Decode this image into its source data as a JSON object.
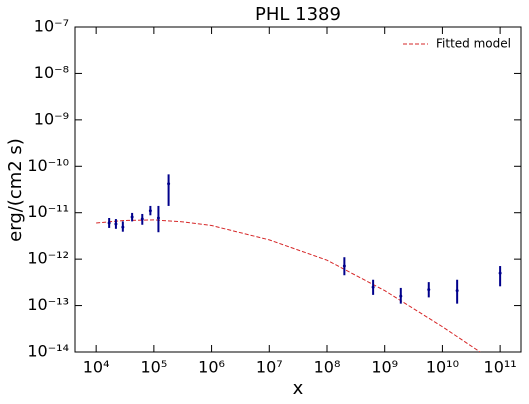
{
  "chart_data": {
    "type": "scatter",
    "title": "PHL 1389",
    "xlabel": "x",
    "ylabel": "erg/(cm2 s)",
    "xlog": true,
    "ylog": true,
    "color": "#00008b",
    "x": [
      16800,
      22000,
      29000,
      42000,
      63000,
      87000,
      120000,
      180000,
      200000000,
      630000000,
      1900000000,
      5800000000,
      18000000000,
      100000000000
    ],
    "values": [
      6e-12,
      5.7e-12,
      4.9e-12,
      8.1e-12,
      7.3e-12,
      1.1e-11,
      7.7e-12,
      4.2e-11,
      7.1e-13,
      2.5e-13,
      1.6e-13,
      2.2e-13,
      2.1e-13,
      5e-13
    ],
    "y_low": [
      4.7e-12,
      4.5e-12,
      3.9e-12,
      6.5e-12,
      5.5e-12,
      8.8e-12,
      3.8e-12,
      1.4e-11,
      4.5e-13,
      1.7e-13,
      1.1e-13,
      1.5e-13,
      1.1e-13,
      2.6e-13
    ],
    "y_high": [
      7.7e-12,
      7.3e-12,
      6.5e-12,
      9.9e-12,
      9.4e-12,
      1.4e-11,
      1.4e-11,
      6.7e-11,
      1.1e-12,
      3.6e-13,
      2.4e-13,
      3.2e-13,
      3.6e-13,
      7.1e-13
    ],
    "model": {
      "name": "Fitted model",
      "color": "#d62728",
      "x": [
        10000,
        30000,
        100000,
        300000,
        1000000,
        10000000,
        100000000,
        1000000000,
        10000000000,
        45000000000
      ],
      "values": [
        6e-12,
        6.8e-12,
        7e-12,
        6.4e-12,
        5.3e-12,
        2.6e-12,
        9.5e-13,
        2.1e-13,
        3.5e-14,
        1e-14
      ]
    },
    "legend": "upper right",
    "xlim": [
      4300,
      230000000000
    ],
    "ylim": [
      1e-14,
      1e-07
    ],
    "xticks": [
      {
        "value": 10000,
        "label": "10⁴"
      },
      {
        "value": 100000,
        "label": "10⁵"
      },
      {
        "value": 1000000,
        "label": "10⁶"
      },
      {
        "value": 10000000,
        "label": "10⁷"
      },
      {
        "value": 100000000,
        "label": "10⁸"
      },
      {
        "value": 1000000000,
        "label": "10⁹"
      },
      {
        "value": 10000000000,
        "label": "10¹⁰"
      },
      {
        "value": 100000000000,
        "label": "10¹¹"
      }
    ],
    "yticks": [
      {
        "value": 1e-14,
        "label": "10⁻¹⁴"
      },
      {
        "value": 1e-13,
        "label": "10⁻¹³"
      },
      {
        "value": 1e-12,
        "label": "10⁻¹²"
      },
      {
        "value": 1e-11,
        "label": "10⁻¹¹"
      },
      {
        "value": 1e-10,
        "label": "10⁻¹⁰"
      },
      {
        "value": 1e-09,
        "label": "10⁻⁹"
      },
      {
        "value": 1e-08,
        "label": "10⁻⁸"
      },
      {
        "value": 1e-07,
        "label": "10⁻⁷"
      }
    ]
  }
}
